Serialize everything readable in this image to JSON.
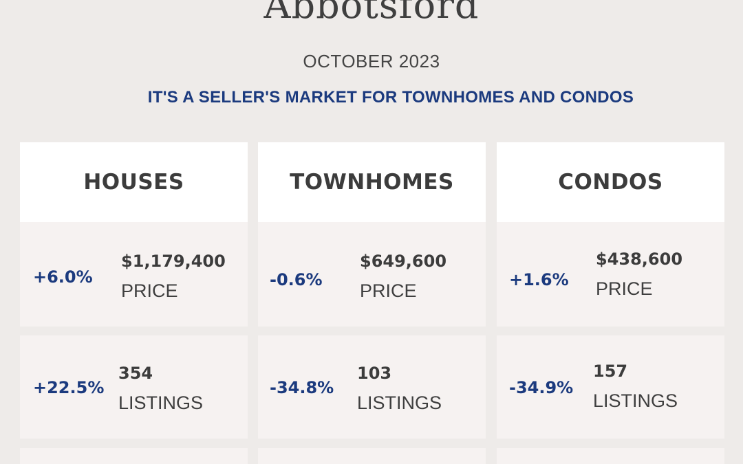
{
  "title": "Abbotsford",
  "date": "OCTOBER 2023",
  "headline": "IT'S A SELLER'S MARKET FOR TOWNHOMES AND CONDOS",
  "columns": [
    {
      "name": "HOUSES",
      "price": {
        "change": "+6.0%",
        "value": "$1,179,400",
        "label": "PRICE"
      },
      "listings": {
        "change": "+22.5%",
        "value": "354",
        "label": "LISTINGS"
      }
    },
    {
      "name": "TOWNHOMES",
      "price": {
        "change": "-0.6%",
        "value": "$649,600",
        "label": "PRICE"
      },
      "listings": {
        "change": "-34.8%",
        "value": "103",
        "label": "LISTINGS"
      }
    },
    {
      "name": "CONDOS",
      "price": {
        "change": "+1.6%",
        "value": "$438,600",
        "label": "PRICE"
      },
      "listings": {
        "change": "-34.9%",
        "value": "157",
        "label": "LISTINGS"
      }
    }
  ]
}
